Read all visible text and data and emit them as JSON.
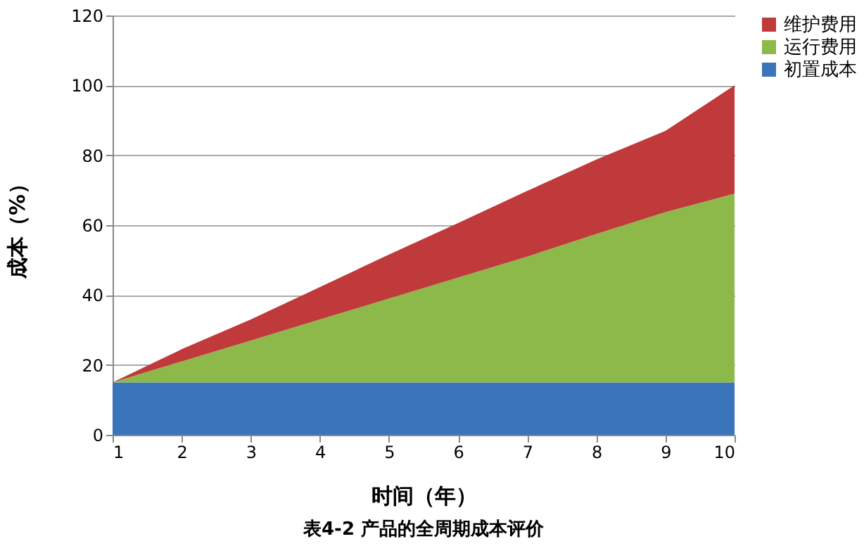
{
  "chart_data": {
    "type": "area",
    "title": "表4-2 产品的全周期成本评价",
    "xlabel": "时间（年）",
    "ylabel": "成本（%）",
    "x": [
      1,
      2,
      3,
      4,
      5,
      6,
      7,
      8,
      9,
      10
    ],
    "stacked": true,
    "series": [
      {
        "name": "初置成本",
        "color": "#3a74ba",
        "values": [
          15,
          15,
          15,
          15,
          15,
          15,
          15,
          15,
          15,
          15
        ]
      },
      {
        "name": "运行费用",
        "color": "#8db84a",
        "values": [
          0,
          6,
          12,
          18,
          24,
          30,
          36,
          42.5,
          48.7,
          54
        ]
      },
      {
        "name": "维护费用",
        "color": "#c0393b",
        "values": [
          0,
          3.5,
          6,
          9.3,
          12.6,
          15.6,
          18.8,
          21.3,
          23.3,
          31
        ]
      }
    ],
    "xlim": [
      1,
      10
    ],
    "xticks": [
      1,
      2,
      3,
      4,
      5,
      6,
      7,
      8,
      9,
      10
    ],
    "ylim": [
      0,
      120
    ],
    "yticks": [
      0,
      20,
      40,
      60,
      80,
      100,
      120
    ],
    "grid": "y",
    "legend": "right"
  }
}
